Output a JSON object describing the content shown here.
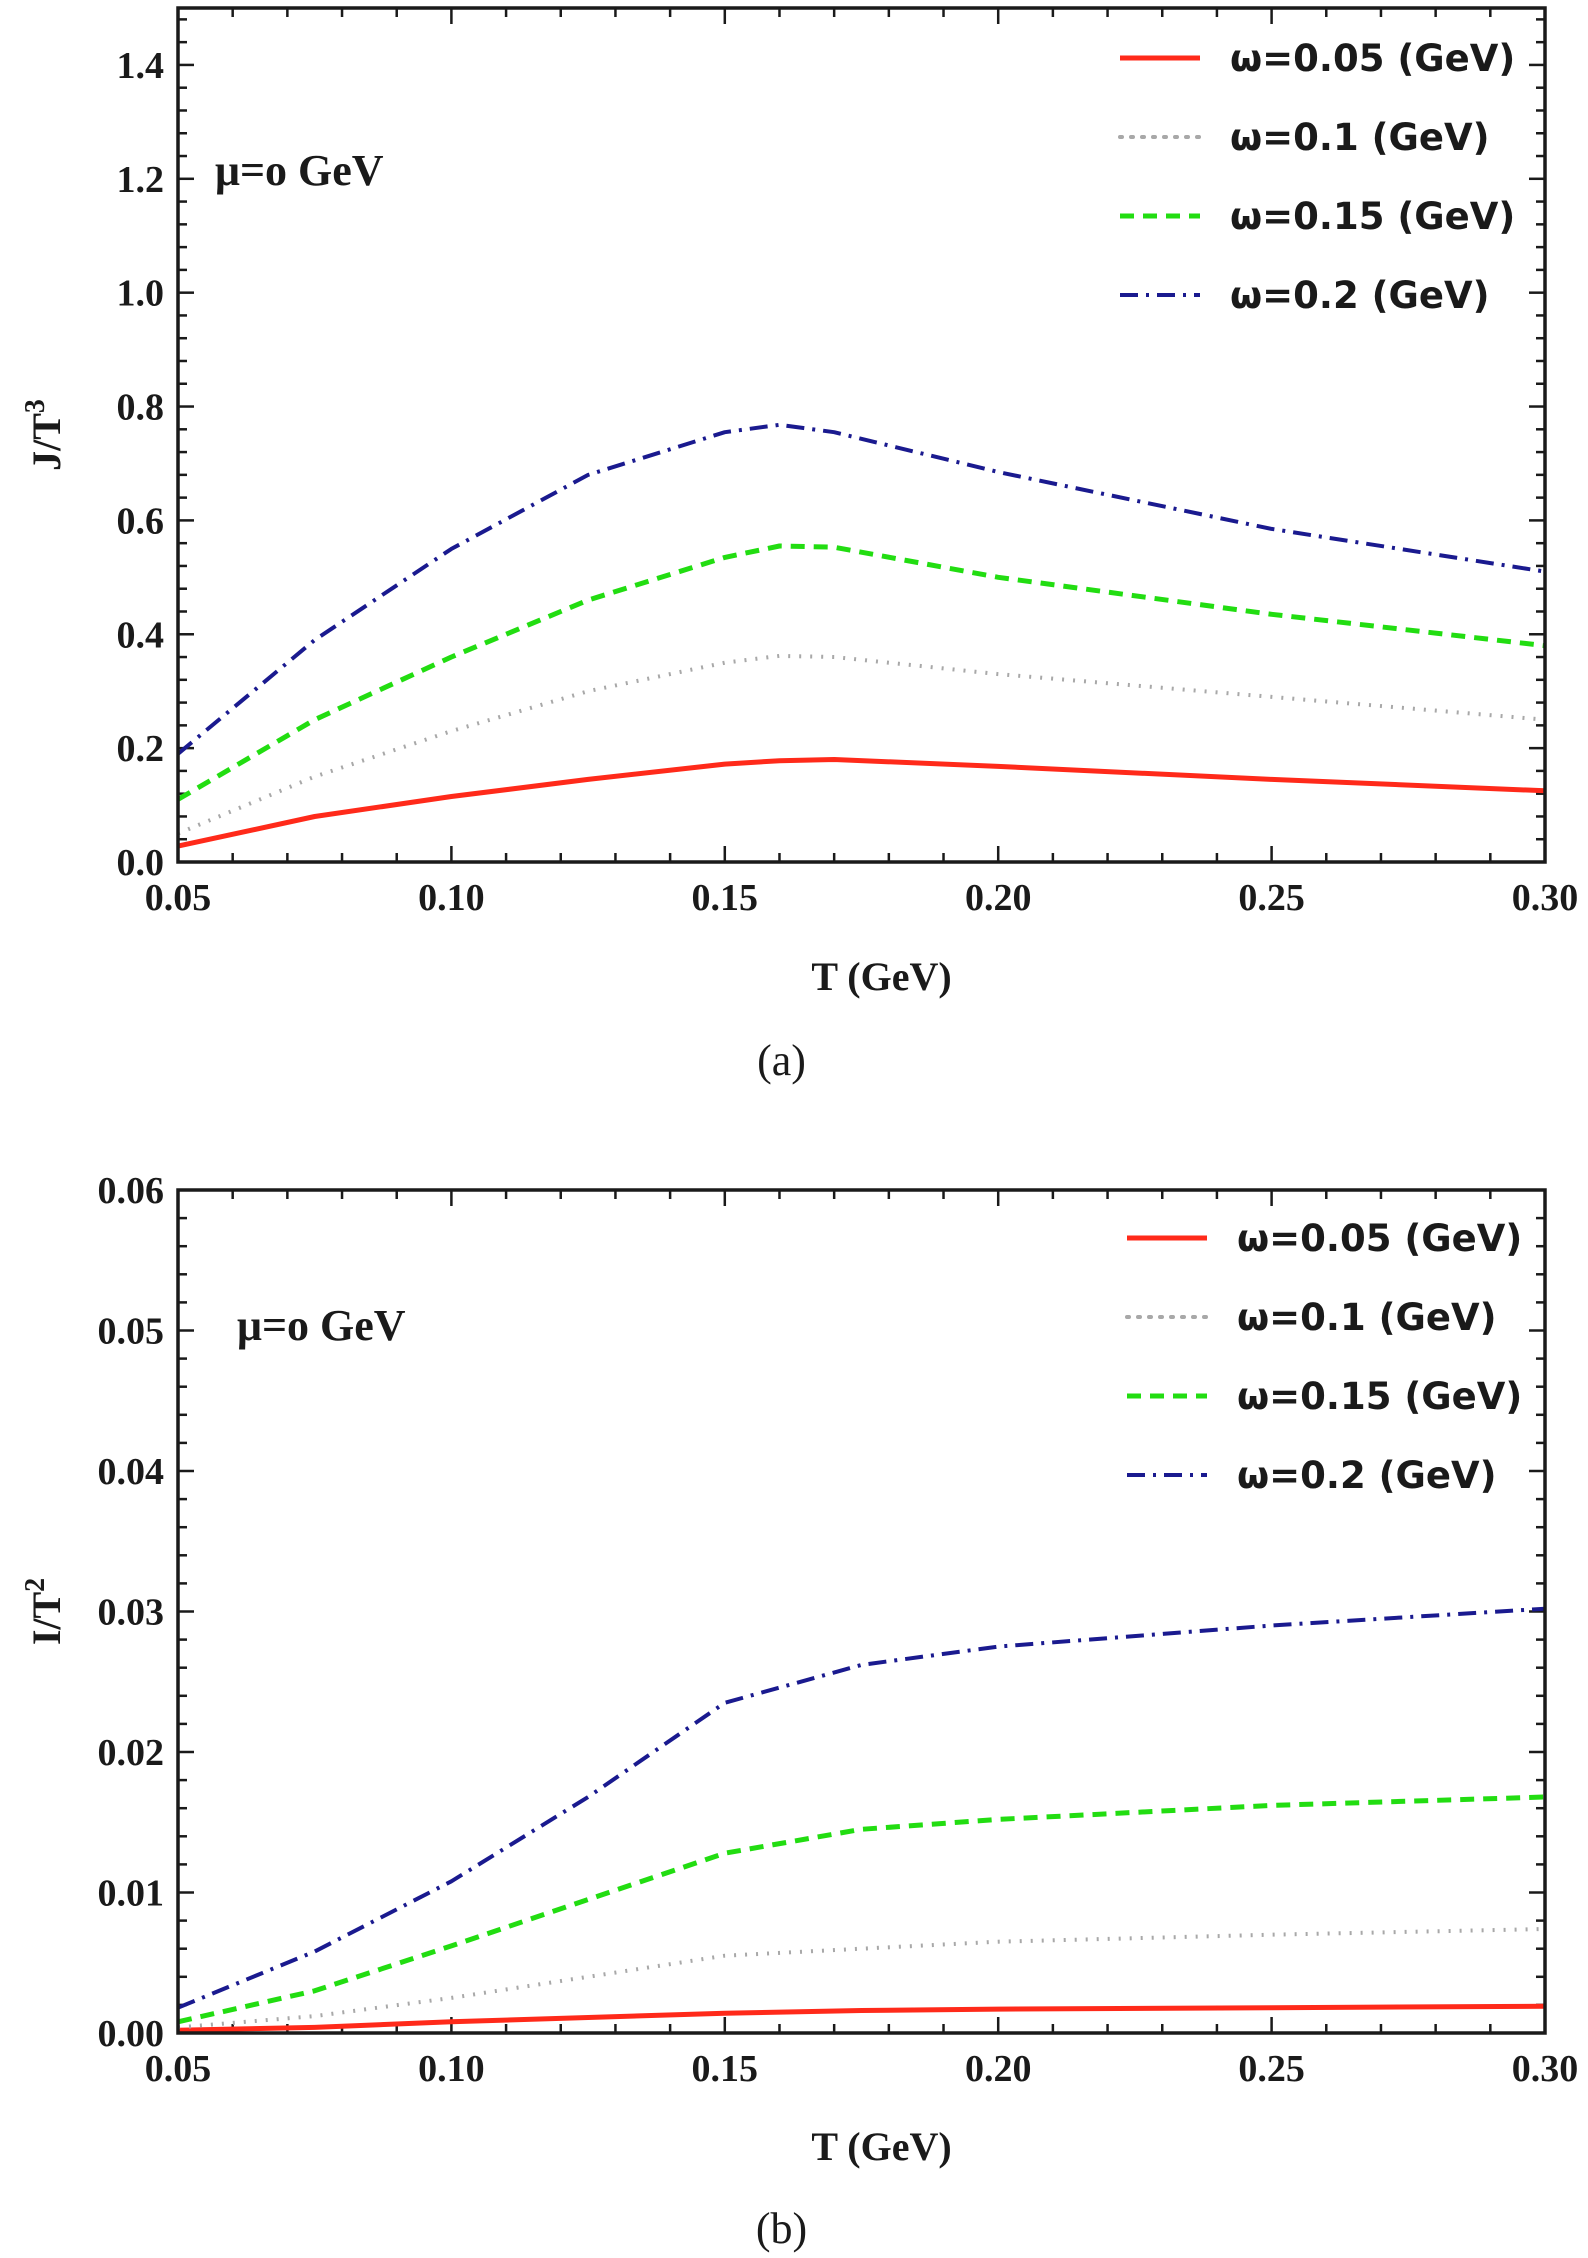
{
  "chart_data": [
    {
      "type": "line",
      "panel_label": "(a)",
      "annotation": "μ=o GeV",
      "xlabel": "T (GeV)",
      "ylabel_base": "J/T",
      "ylabel_exp": "3",
      "xlim": [
        0.05,
        0.3
      ],
      "ylim": [
        0,
        1.5
      ],
      "xticks": [
        0.05,
        0.1,
        0.15,
        0.2,
        0.25,
        0.3
      ],
      "xtick_labels": [
        "0.05",
        "0.10",
        "0.15",
        "0.20",
        "0.25",
        "0.30"
      ],
      "yticks": [
        0.0,
        0.2,
        0.4,
        0.6,
        0.8,
        1.0,
        1.2,
        1.4
      ],
      "ytick_labels": [
        "0.0",
        "0.2",
        "0.4",
        "0.6",
        "0.8",
        "1.0",
        "1.2",
        "1.4"
      ],
      "legend_position": "top-right",
      "series": [
        {
          "name": "ω=0.05 (GeV)",
          "color": "#ff2a1a",
          "style": "solid",
          "x": [
            0.05,
            0.075,
            0.1,
            0.125,
            0.15,
            0.16,
            0.17,
            0.2,
            0.25,
            0.3
          ],
          "y": [
            0.028,
            0.08,
            0.115,
            0.145,
            0.172,
            0.178,
            0.18,
            0.168,
            0.145,
            0.125
          ]
        },
        {
          "name": "ω=0.1 (GeV)",
          "color": "#a8a8a8",
          "style": "dotted",
          "x": [
            0.05,
            0.075,
            0.1,
            0.125,
            0.15,
            0.16,
            0.17,
            0.2,
            0.25,
            0.3
          ],
          "y": [
            0.05,
            0.15,
            0.23,
            0.3,
            0.35,
            0.362,
            0.36,
            0.33,
            0.29,
            0.25
          ]
        },
        {
          "name": "ω=0.15 (GeV)",
          "color": "#22dd11",
          "style": "dashed",
          "x": [
            0.05,
            0.075,
            0.1,
            0.125,
            0.15,
            0.16,
            0.17,
            0.2,
            0.25,
            0.3
          ],
          "y": [
            0.11,
            0.25,
            0.36,
            0.46,
            0.535,
            0.555,
            0.553,
            0.5,
            0.435,
            0.38
          ]
        },
        {
          "name": "ω=0.2 (GeV)",
          "color": "#1a1a8f",
          "style": "dashdot",
          "x": [
            0.05,
            0.075,
            0.1,
            0.125,
            0.15,
            0.16,
            0.17,
            0.2,
            0.25,
            0.3
          ],
          "y": [
            0.19,
            0.39,
            0.55,
            0.68,
            0.755,
            0.768,
            0.755,
            0.685,
            0.585,
            0.51
          ]
        }
      ]
    },
    {
      "type": "line",
      "panel_label": "(b)",
      "annotation": "μ=o GeV",
      "xlabel": "T (GeV)",
      "ylabel_base": "I/T",
      "ylabel_exp": "2",
      "xlim": [
        0.05,
        0.3
      ],
      "ylim": [
        0,
        0.06
      ],
      "xticks": [
        0.05,
        0.1,
        0.15,
        0.2,
        0.25,
        0.3
      ],
      "xtick_labels": [
        "0.05",
        "0.10",
        "0.15",
        "0.20",
        "0.25",
        "0.30"
      ],
      "yticks": [
        0.0,
        0.01,
        0.02,
        0.03,
        0.04,
        0.05,
        0.06
      ],
      "ytick_labels": [
        "0.00",
        "0.01",
        "0.02",
        "0.03",
        "0.04",
        "0.05",
        "0.06"
      ],
      "legend_position": "top-right",
      "series": [
        {
          "name": "ω=0.05 (GeV)",
          "color": "#ff2a1a",
          "style": "solid",
          "x": [
            0.05,
            0.075,
            0.1,
            0.125,
            0.15,
            0.175,
            0.2,
            0.25,
            0.3
          ],
          "y": [
            0.0002,
            0.0004,
            0.0008,
            0.0011,
            0.0014,
            0.0016,
            0.0017,
            0.0018,
            0.0019
          ]
        },
        {
          "name": "ω=0.1 (GeV)",
          "color": "#a8a8a8",
          "style": "dotted",
          "x": [
            0.05,
            0.075,
            0.1,
            0.125,
            0.15,
            0.175,
            0.2,
            0.25,
            0.3
          ],
          "y": [
            0.0004,
            0.0012,
            0.0025,
            0.004,
            0.0055,
            0.006,
            0.0065,
            0.007,
            0.0074
          ]
        },
        {
          "name": "ω=0.15 (GeV)",
          "color": "#22dd11",
          "style": "dashed",
          "x": [
            0.05,
            0.075,
            0.1,
            0.125,
            0.15,
            0.175,
            0.2,
            0.25,
            0.3
          ],
          "y": [
            0.0008,
            0.003,
            0.0062,
            0.0095,
            0.0128,
            0.0145,
            0.0152,
            0.0162,
            0.0168
          ]
        },
        {
          "name": "ω=0.2 (GeV)",
          "color": "#1a1a8f",
          "style": "dashdot",
          "x": [
            0.05,
            0.075,
            0.1,
            0.125,
            0.15,
            0.175,
            0.2,
            0.25,
            0.3
          ],
          "y": [
            0.0018,
            0.0058,
            0.0108,
            0.0168,
            0.0235,
            0.0262,
            0.0275,
            0.029,
            0.0302
          ]
        }
      ]
    }
  ]
}
